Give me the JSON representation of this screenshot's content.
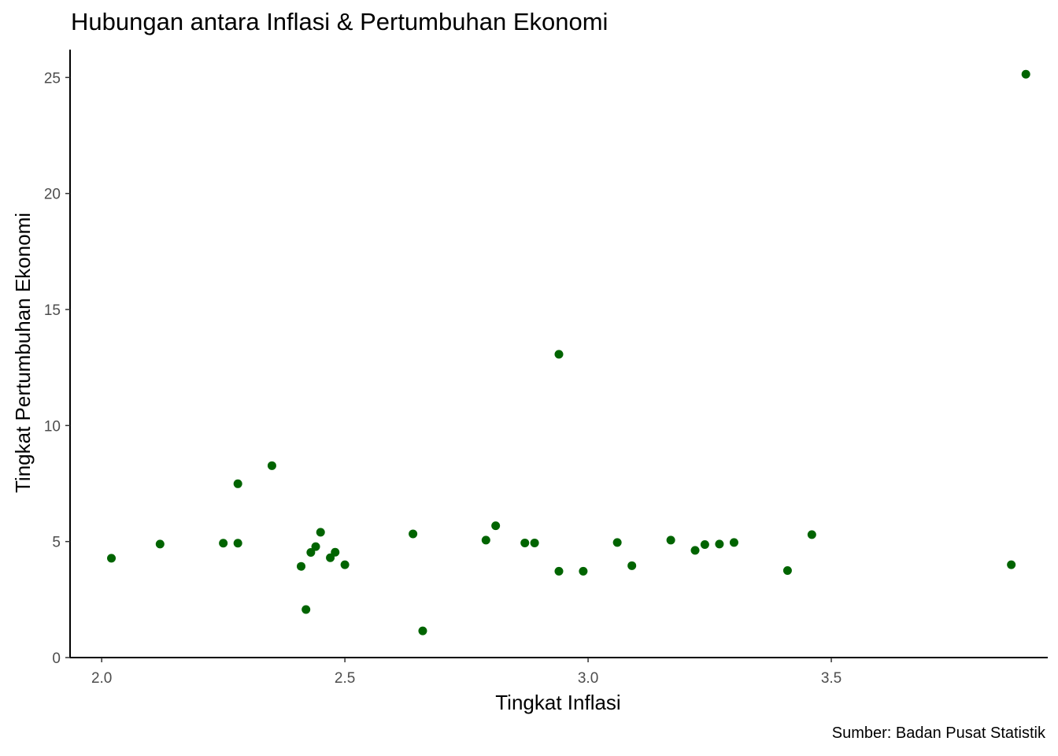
{
  "chart_data": {
    "type": "scatter",
    "title": "Hubungan antara Inflasi & Pertumbuhan Ekonomi",
    "xlabel": "Tingkat Inflasi",
    "ylabel": "Tingkat Pertumbuhan Ekonomi",
    "caption": "Sumber: Badan Pusat Statistik",
    "xlim": [
      1.935,
      3.945
    ],
    "ylim": [
      0,
      26.2
    ],
    "xticks": [
      "2.0",
      "2.5",
      "3.0",
      "3.5"
    ],
    "xtick_values": [
      2.0,
      2.5,
      3.0,
      3.5
    ],
    "yticks": [
      "0",
      "5",
      "10",
      "15",
      "20",
      "25"
    ],
    "ytick_values": [
      0,
      5,
      10,
      15,
      20,
      25
    ],
    "grid": false,
    "point_color": "#006400",
    "points": [
      {
        "x": 2.02,
        "y": 4.28
      },
      {
        "x": 2.12,
        "y": 4.89
      },
      {
        "x": 2.25,
        "y": 4.93
      },
      {
        "x": 2.28,
        "y": 7.49
      },
      {
        "x": 2.28,
        "y": 4.93
      },
      {
        "x": 2.35,
        "y": 8.27
      },
      {
        "x": 2.41,
        "y": 3.93
      },
      {
        "x": 2.42,
        "y": 2.07
      },
      {
        "x": 2.43,
        "y": 4.53
      },
      {
        "x": 2.44,
        "y": 4.78
      },
      {
        "x": 2.45,
        "y": 5.4
      },
      {
        "x": 2.47,
        "y": 4.3
      },
      {
        "x": 2.48,
        "y": 4.54
      },
      {
        "x": 2.5,
        "y": 4.0
      },
      {
        "x": 2.64,
        "y": 5.33
      },
      {
        "x": 2.66,
        "y": 1.15
      },
      {
        "x": 2.79,
        "y": 5.06
      },
      {
        "x": 2.81,
        "y": 5.68
      },
      {
        "x": 2.87,
        "y": 4.94
      },
      {
        "x": 2.89,
        "y": 4.94
      },
      {
        "x": 2.94,
        "y": 13.07
      },
      {
        "x": 2.94,
        "y": 3.72
      },
      {
        "x": 2.99,
        "y": 3.72
      },
      {
        "x": 3.06,
        "y": 4.96
      },
      {
        "x": 3.09,
        "y": 3.96
      },
      {
        "x": 3.17,
        "y": 5.06
      },
      {
        "x": 3.22,
        "y": 4.62
      },
      {
        "x": 3.24,
        "y": 4.87
      },
      {
        "x": 3.27,
        "y": 4.89
      },
      {
        "x": 3.3,
        "y": 4.96
      },
      {
        "x": 3.41,
        "y": 3.75
      },
      {
        "x": 3.46,
        "y": 5.3
      },
      {
        "x": 3.87,
        "y": 4.0
      },
      {
        "x": 3.9,
        "y": 25.14
      }
    ]
  }
}
